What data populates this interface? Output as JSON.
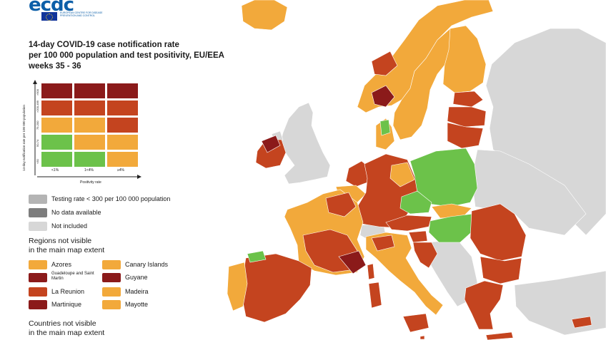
{
  "logo": {
    "word": "ecdc",
    "subtitle": "EUROPEAN CENTRE FOR DISEASE PREVENTION AND CONTROL"
  },
  "title": {
    "line1": "14-day COVID-19 case notification rate",
    "line2": "per 100 000 population and test positivity, EU/EEA",
    "line3": "weeks 35 - 36"
  },
  "colors": {
    "green": "#6cc24a",
    "orange": "#f2a93b",
    "red": "#c4441f",
    "darkred": "#8b1a1a",
    "maroon": "#7a1717",
    "lightgrey": "#d7d7d7",
    "midgrey": "#b4b4b4",
    "darkgrey": "#7d7d7d",
    "sea": "#ffffff"
  },
  "matrix": {
    "y_axis_label": "14-day notification rate per 100 000 population",
    "x_axis_label": "Positivity rate",
    "y_ticks": [
      ">500",
      ">200-499",
      "75-200",
      "50-74",
      "<50"
    ],
    "x_ticks": [
      "<1%",
      "1<4%",
      "≥4%"
    ],
    "rows": [
      [
        "darkred",
        "darkred",
        "darkred"
      ],
      [
        "red",
        "red",
        "red"
      ],
      [
        "orange",
        "orange",
        "red"
      ],
      [
        "green",
        "orange",
        "orange"
      ],
      [
        "green",
        "green",
        "orange"
      ]
    ]
  },
  "legend": {
    "testing_rate": "Testing rate < 300 per 100 000 population",
    "no_data": "No data available",
    "not_included": "Not included"
  },
  "regions": {
    "title_line1": "Regions not visible",
    "title_line2": "in the main map extent",
    "items": [
      {
        "label": "Azores",
        "color": "orange"
      },
      {
        "label": "Canary Islands",
        "color": "orange"
      },
      {
        "label": "Guadeloupe and Saint Martin",
        "color": "darkred"
      },
      {
        "label": "Guyane",
        "color": "darkred"
      },
      {
        "label": "La Reunion",
        "color": "red"
      },
      {
        "label": "Madeira",
        "color": "orange"
      },
      {
        "label": "Martinique",
        "color": "darkred"
      },
      {
        "label": "Mayotte",
        "color": "orange"
      }
    ]
  },
  "countries": {
    "title_line1": "Countries not visible",
    "title_line2": "in the main map extent"
  }
}
